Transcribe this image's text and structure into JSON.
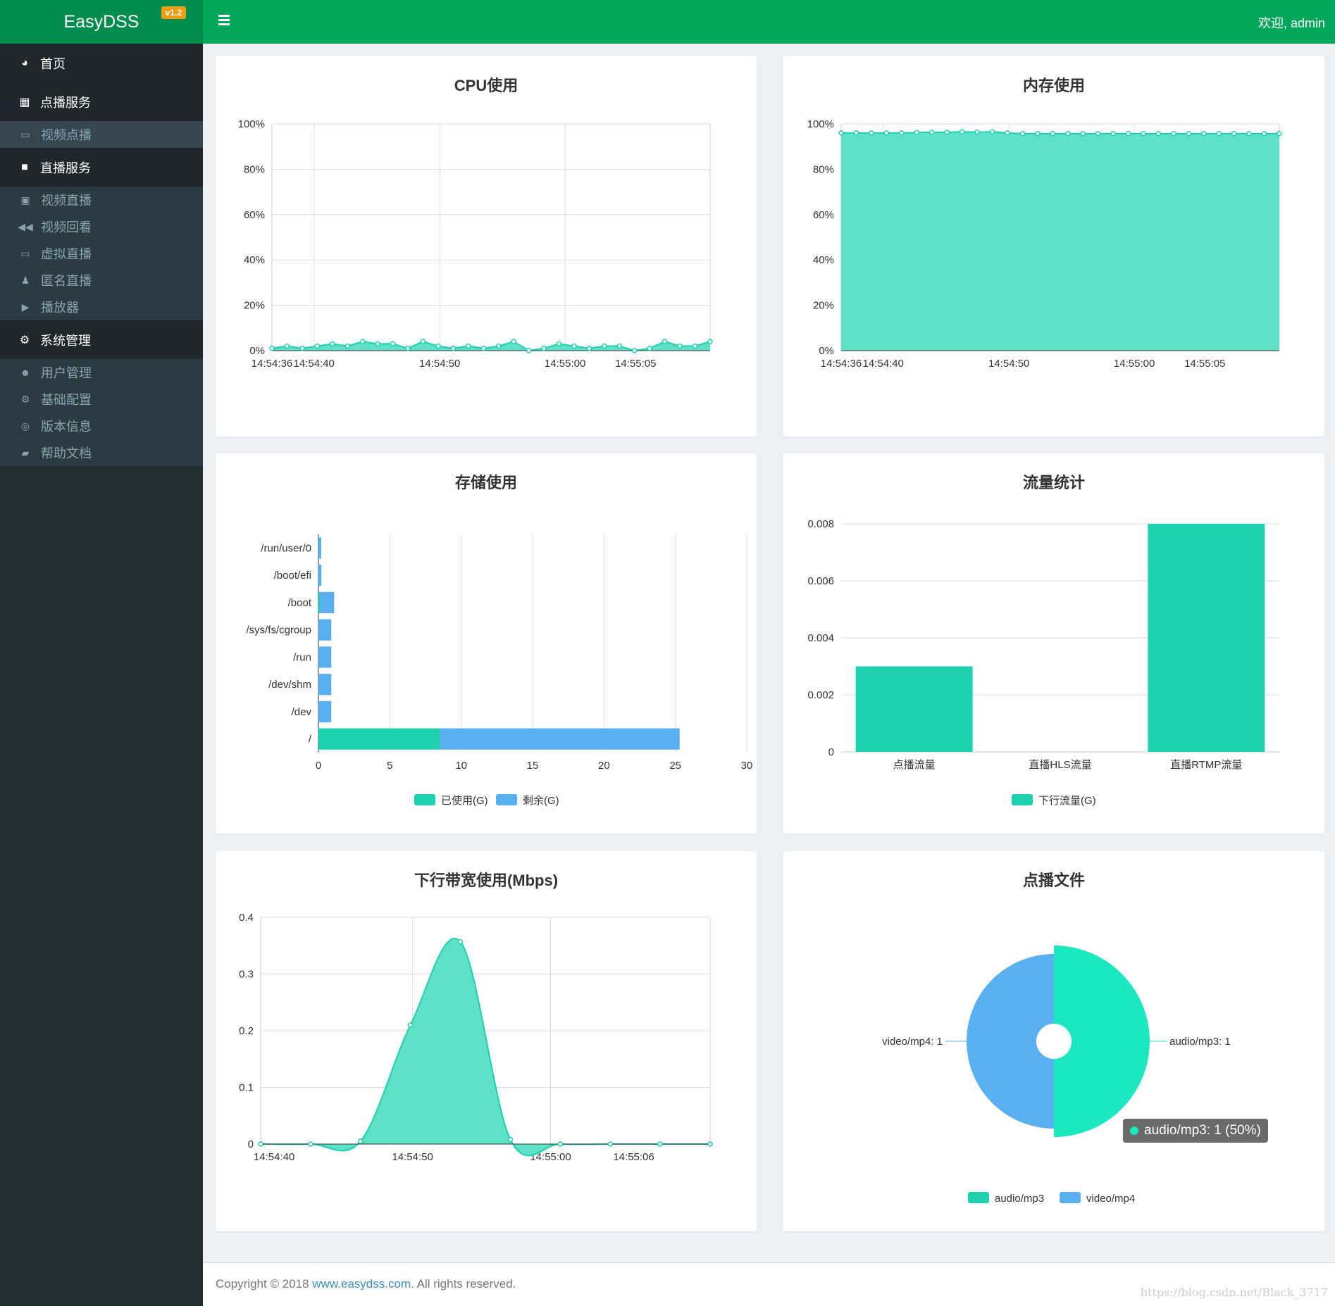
{
  "app": {
    "title": "EasyDSS",
    "version": "v1.2",
    "welcome": "欢迎, admin"
  },
  "sidebar": {
    "home": "首页",
    "vod": "点播服务",
    "vod_items": [
      "视频点播"
    ],
    "live": "直播服务",
    "live_items": [
      "视频直播",
      "视频回看",
      "虚拟直播",
      "匿名直播",
      "播放器"
    ],
    "sys": "系统管理",
    "sys_items": [
      "用户管理",
      "基础配置",
      "版本信息",
      "帮助文档"
    ]
  },
  "cards": {
    "cpu": {
      "title": "CPU使用"
    },
    "mem": {
      "title": "内存使用"
    },
    "storage": {
      "title": "存储使用"
    },
    "traffic": {
      "title": "流量统计"
    },
    "bandwidth": {
      "title": "下行带宽使用(Mbps)"
    },
    "files": {
      "title": "点播文件",
      "tooltip": "audio/mp3: 1 (50%)"
    }
  },
  "colors": {
    "green": "#1cd1ae",
    "fill": "#5ee1c7",
    "blue": "#5aaff0",
    "pie_green": "#1be8be"
  },
  "chart_data": [
    {
      "type": "area",
      "title": "CPU使用",
      "ylim": [
        0,
        100
      ],
      "yticks": [
        "0%",
        "20%",
        "40%",
        "60%",
        "80%",
        "100%"
      ],
      "xticks": [
        "14:54:36",
        "14:54:40",
        "14:54:50",
        "14:55:00",
        "14:55:05"
      ],
      "values": [
        1,
        2,
        1,
        2,
        3,
        2,
        4,
        3,
        3,
        1,
        4,
        2,
        1,
        2,
        1,
        2,
        4,
        0,
        1,
        3,
        2,
        1,
        2,
        2,
        0,
        1,
        4,
        2,
        2,
        4
      ]
    },
    {
      "type": "area",
      "title": "内存使用",
      "ylim": [
        0,
        100
      ],
      "yticks": [
        "0%",
        "20%",
        "40%",
        "60%",
        "80%",
        "100%"
      ],
      "xticks": [
        "14:54:36",
        "14:54:40",
        "14:54:50",
        "14:55:00",
        "14:55:05"
      ],
      "values": [
        96,
        96,
        96,
        96,
        96,
        96.2,
        96.3,
        96.3,
        96.5,
        96.4,
        96.5,
        96,
        95.7,
        95.7,
        95.7,
        95.7,
        95.7,
        95.7,
        95.7,
        95.7,
        95.7,
        95.7,
        95.7,
        95.7,
        95.7,
        95.7,
        95.7,
        95.7,
        95.7,
        95.7
      ]
    },
    {
      "type": "bar",
      "title": "存储使用",
      "orientation": "horizontal",
      "xlim": [
        0,
        30
      ],
      "xticks": [
        "0",
        "5",
        "10",
        "15",
        "20",
        "25",
        "30"
      ],
      "categories": [
        "/run/user/0",
        "/boot/efi",
        "/boot",
        "/sys/fs/cgroup",
        "/run",
        "/dev/shm",
        "/dev",
        "/"
      ],
      "series": [
        {
          "name": "已使用(G)",
          "values": [
            0,
            0.01,
            0.1,
            0,
            0,
            0,
            0,
            8.5
          ]
        },
        {
          "name": "剩余(G)",
          "values": [
            0.2,
            0.2,
            1,
            0.9,
            0.9,
            0.9,
            0.9,
            16.8
          ]
        }
      ]
    },
    {
      "type": "bar",
      "title": "流量统计",
      "ylim": [
        0,
        0.008
      ],
      "yticks": [
        "0",
        "0.002",
        "0.004",
        "0.006",
        "0.008"
      ],
      "categories": [
        "点播流量",
        "直播HLS流量",
        "直播RTMP流量"
      ],
      "series": [
        {
          "name": "下行流量(G)",
          "values": [
            0.003,
            0,
            0.008
          ]
        }
      ]
    },
    {
      "type": "area",
      "title": "下行带宽使用(Mbps)",
      "ylim": [
        0,
        0.4
      ],
      "yticks": [
        "0",
        "0.1",
        "0.2",
        "0.3",
        "0.4"
      ],
      "xticks": [
        "14:54:40",
        "14:54:50",
        "14:55:00",
        "14:55:06"
      ],
      "values": [
        0,
        0,
        0.005,
        0.21,
        0.357,
        0.008,
        0,
        0,
        0,
        0
      ]
    },
    {
      "type": "pie",
      "title": "点播文件",
      "slices": [
        {
          "name": "audio/mp3",
          "value": 1,
          "label": "audio/mp3: 1"
        },
        {
          "name": "video/mp4",
          "value": 1,
          "label": "video/mp4: 1"
        }
      ]
    }
  ],
  "footer": {
    "prefix": "Copyright © 2018 ",
    "link": "www.easydss.com",
    "suffix": ". All rights reserved.",
    "watermark": "https://blog.csdn.net/Black_3717"
  }
}
